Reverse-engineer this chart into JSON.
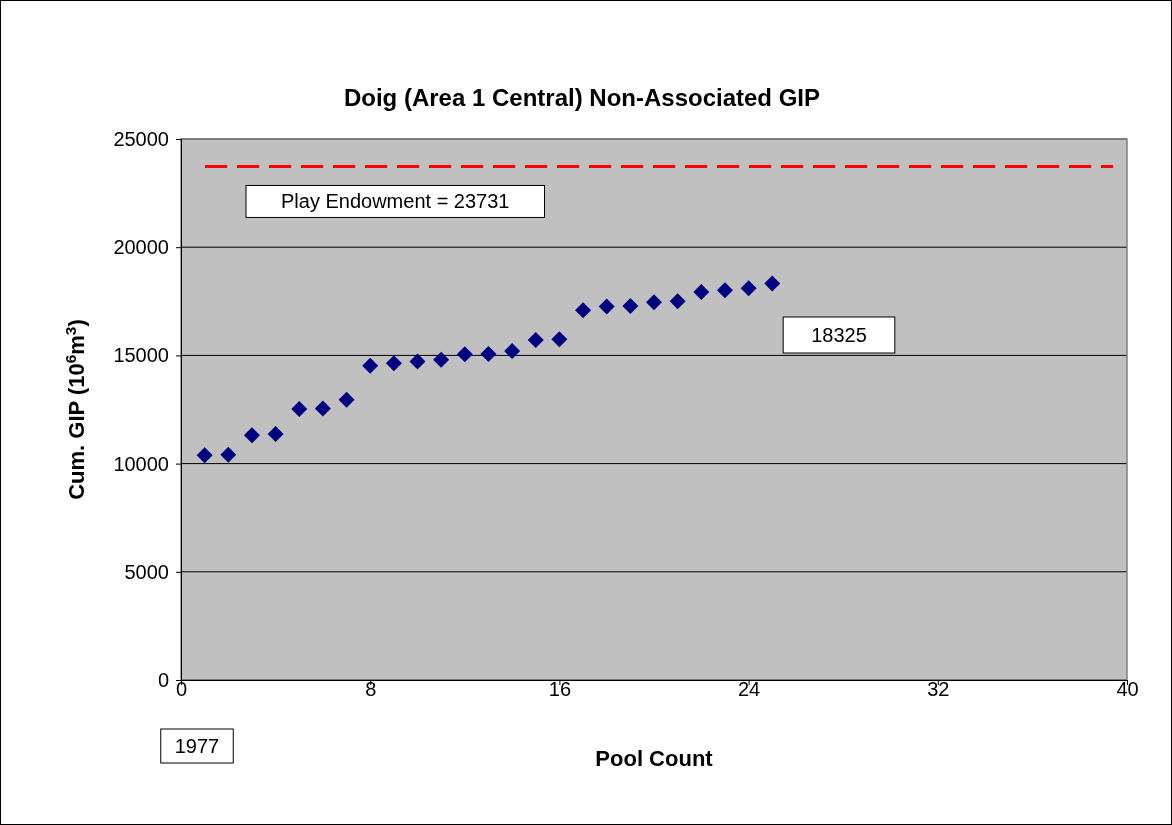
{
  "chart_data": {
    "type": "scatter",
    "title": "Doig (Area 1 Central) Non-Associated GIP",
    "xlabel": "Pool Count",
    "ylabel": "Cum. GIP (10$^{6}$m$^{3}$)",
    "x": [
      1,
      2,
      3,
      4,
      5,
      6,
      7,
      8,
      9,
      10,
      11,
      12,
      13,
      14,
      15,
      16,
      17,
      18,
      19,
      20,
      21,
      22,
      23,
      24,
      25
    ],
    "series": [
      {
        "color": "#000080",
        "values": [
          10390,
          10410,
          11310,
          11370,
          12520,
          12550,
          12950,
          14520,
          14640,
          14720,
          14800,
          15050,
          15060,
          15200,
          15710,
          15750,
          17090,
          17260,
          17280,
          17460,
          17500,
          17930,
          18010,
          18100,
          18325
        ]
      }
    ],
    "xlim": [
      0,
      40
    ],
    "xticks": [
      0,
      8,
      16,
      24,
      32,
      40
    ],
    "ylim": [
      0,
      25000
    ],
    "yticks": [
      0,
      5000,
      10000,
      15000,
      20000,
      25000
    ],
    "grid": "y",
    "marker": "diamond",
    "ref_lines": [
      {
        "axis": "y",
        "value": 23731,
        "label": "Play Endowment = 23731",
        "color": "#ff0000",
        "line_style": "dashed"
      }
    ],
    "annotations": [
      "18325",
      "1977"
    ]
  }
}
